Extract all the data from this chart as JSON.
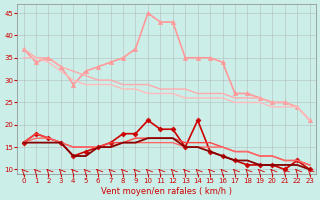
{
  "x": [
    0,
    1,
    2,
    3,
    4,
    5,
    6,
    7,
    8,
    9,
    10,
    11,
    12,
    13,
    14,
    15,
    16,
    17,
    18,
    19,
    20,
    21,
    22,
    23
  ],
  "series": [
    {
      "name": "rafales_max",
      "y": [
        37,
        34,
        35,
        33,
        29,
        32,
        33,
        34,
        35,
        37,
        45,
        43,
        43,
        35,
        35,
        35,
        34,
        27,
        27,
        26,
        25,
        25,
        24,
        21
      ],
      "color": "#ff9999",
      "lw": 1.2,
      "marker": "^",
      "ms": 3
    },
    {
      "name": "rafales_line1",
      "y": [
        37,
        35,
        35,
        33,
        32,
        31,
        30,
        30,
        29,
        29,
        29,
        28,
        28,
        28,
        27,
        27,
        27,
        26,
        26,
        26,
        25,
        25,
        24,
        21
      ],
      "color": "#ffaaaa",
      "lw": 1.0,
      "marker": null,
      "ms": 0
    },
    {
      "name": "rafales_line2",
      "y": [
        35,
        35,
        34,
        32,
        30,
        29,
        29,
        29,
        28,
        28,
        27,
        27,
        27,
        26,
        26,
        26,
        26,
        25,
        25,
        25,
        24,
        24,
        24,
        21
      ],
      "color": "#ffbbbb",
      "lw": 1.0,
      "marker": null,
      "ms": 0
    },
    {
      "name": "vent_max",
      "y": [
        16,
        18,
        17,
        16,
        13,
        14,
        15,
        16,
        18,
        18,
        21,
        19,
        19,
        15,
        21,
        14,
        13,
        12,
        11,
        11,
        11,
        10,
        12,
        10
      ],
      "color": "#cc0000",
      "lw": 1.2,
      "marker": "D",
      "ms": 2.5
    },
    {
      "name": "vent_line1",
      "y": [
        16,
        18,
        17,
        16,
        15,
        15,
        15,
        16,
        16,
        17,
        17,
        17,
        17,
        16,
        16,
        16,
        15,
        14,
        14,
        13,
        13,
        12,
        12,
        11
      ],
      "color": "#ff4444",
      "lw": 1.0,
      "marker": null,
      "ms": 0
    },
    {
      "name": "vent_line2",
      "y": [
        16,
        17,
        17,
        16,
        15,
        15,
        15,
        15,
        16,
        16,
        16,
        16,
        16,
        15,
        15,
        15,
        15,
        14,
        14,
        13,
        13,
        12,
        12,
        11
      ],
      "color": "#ff6666",
      "lw": 1.0,
      "marker": null,
      "ms": 0
    },
    {
      "name": "vent_moy",
      "y": [
        16,
        16,
        16,
        16,
        13,
        13,
        15,
        15,
        16,
        16,
        17,
        17,
        17,
        15,
        15,
        14,
        13,
        12,
        12,
        11,
        11,
        11,
        11,
        10
      ],
      "color": "#880000",
      "lw": 1.3,
      "marker": null,
      "ms": 0
    }
  ],
  "xlim": [
    -0.5,
    23.5
  ],
  "ylim": [
    9,
    47
  ],
  "yticks": [
    10,
    15,
    20,
    25,
    30,
    35,
    40,
    45
  ],
  "xticks": [
    0,
    1,
    2,
    3,
    4,
    5,
    6,
    7,
    8,
    9,
    10,
    11,
    12,
    13,
    14,
    15,
    16,
    17,
    18,
    19,
    20,
    21,
    22,
    23
  ],
  "xlabel": "Vent moyen/en rafales ( km/h )",
  "bg_color": "#cceee8",
  "grid_color": "#aaaaaa",
  "tick_color": "#cc0000",
  "label_color": "#cc0000",
  "xlabel_color": "#cc0000"
}
